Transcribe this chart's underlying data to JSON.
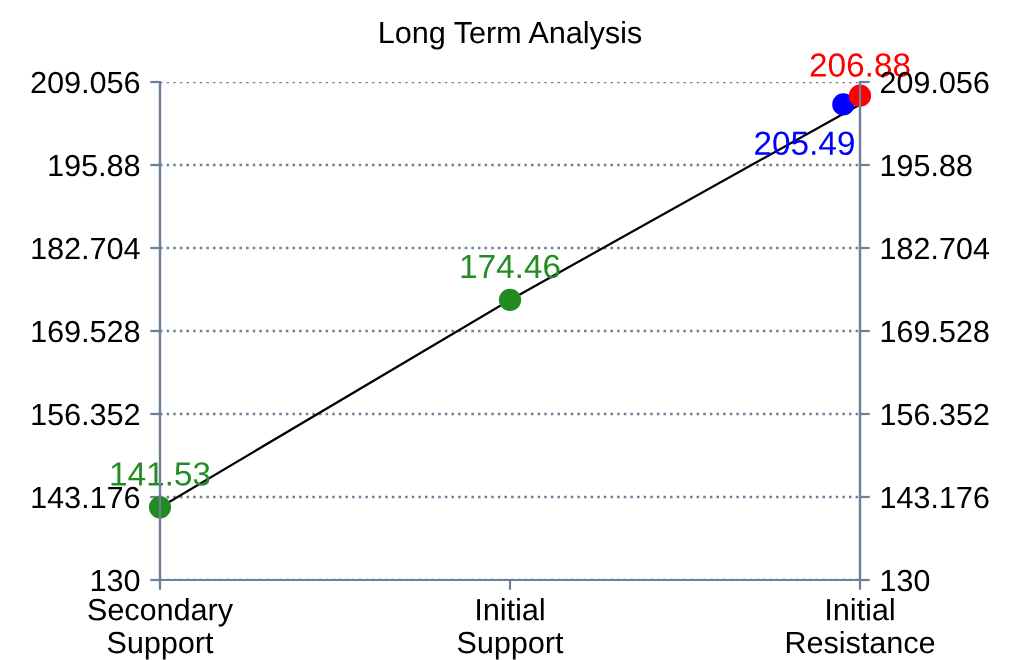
{
  "chart_data": {
    "type": "line",
    "title": "Long Term Analysis",
    "categories": [
      "Secondary\nSupport",
      "Initial\nSupport",
      "Initial\nResistance"
    ],
    "series": [
      {
        "color": "#000000",
        "values": [
          141.53,
          174.46,
          205.49
        ],
        "marker": "none"
      },
      {
        "type": "scatter",
        "color": "#228b22",
        "values": [
          141.53,
          174.46,
          null
        ],
        "marker": "circle",
        "value_labels": [
          "141.53",
          "174.46",
          null
        ]
      },
      {
        "type": "scatter",
        "color": "#0000ff",
        "values": [
          null,
          null,
          205.49
        ],
        "marker": "circle",
        "value_labels": [
          null,
          null,
          "205.49"
        ]
      },
      {
        "type": "scatter",
        "color": "#ff0000",
        "values": [
          null,
          null,
          206.88
        ],
        "marker": "circle",
        "value_labels": [
          null,
          null,
          "206.88"
        ]
      }
    ],
    "ylim": [
      130,
      209.056
    ],
    "yticks": [
      130,
      143.176,
      156.352,
      169.528,
      182.704,
      195.88,
      209.056
    ],
    "y2lim": [
      130,
      209.056
    ],
    "y2ticks": [
      130,
      143.176,
      156.352,
      169.528,
      182.704,
      195.88,
      209.056
    ],
    "grid": "y"
  }
}
